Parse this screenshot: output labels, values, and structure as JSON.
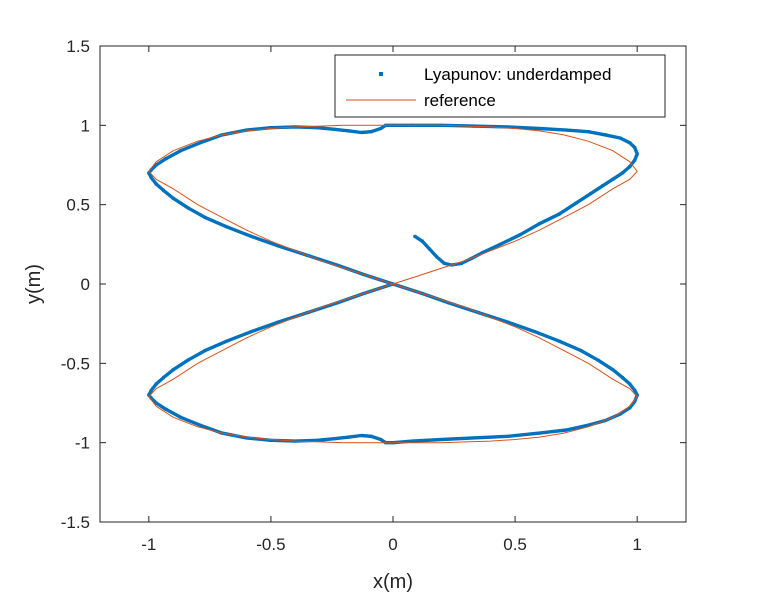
{
  "chart_data": {
    "type": "line",
    "title": "",
    "xlabel": "x(m)",
    "ylabel": "y(m)",
    "xlim": [
      -1.2,
      1.2
    ],
    "ylim": [
      -1.5,
      1.5
    ],
    "xticks": [
      -1,
      -0.5,
      0,
      0.5,
      1
    ],
    "xtick_labels": [
      "-1",
      "-0.5",
      "0",
      "0.5",
      "1"
    ],
    "yticks": [
      -1.5,
      -1,
      -0.5,
      0,
      0.5,
      1,
      1.5
    ],
    "ytick_labels": [
      "-1.5",
      "-1",
      "-0.5",
      "0",
      "0.5",
      "1",
      "1.5"
    ],
    "grid": false,
    "legend_position": "top-right",
    "series": [
      {
        "name": "Lyapunov: underdamped",
        "style": "dots",
        "color": "#0072BD",
        "x": [
          0.09,
          0.12,
          0.15,
          0.18,
          0.21,
          0.24,
          0.28,
          0.32,
          0.37,
          0.44,
          0.52,
          0.6,
          0.68,
          0.75,
          0.81,
          0.86,
          0.9,
          0.94,
          0.97,
          0.99,
          1.0,
          0.99,
          0.97,
          0.93,
          0.87,
          0.8,
          0.71,
          0.6,
          0.47,
          0.33,
          0.2,
          0.08,
          0.0,
          -0.03,
          -0.05,
          -0.09,
          -0.13,
          -0.18,
          -0.24,
          -0.31,
          -0.4,
          -0.5,
          -0.6,
          -0.7,
          -0.79,
          -0.87,
          -0.93,
          -0.97,
          -0.99,
          -1.0,
          -0.99,
          -0.97,
          -0.94,
          -0.9,
          -0.84,
          -0.77,
          -0.68,
          -0.58,
          -0.47,
          -0.35,
          -0.23,
          -0.12,
          0.0,
          0.12,
          0.23,
          0.35,
          0.47,
          0.58,
          0.68,
          0.77,
          0.84,
          0.9,
          0.94,
          0.97,
          0.99,
          1.0,
          0.99,
          0.97,
          0.93,
          0.87,
          0.8,
          0.71,
          0.6,
          0.47,
          0.33,
          0.2,
          0.08,
          0.0,
          -0.03,
          -0.05,
          -0.09,
          -0.13,
          -0.18,
          -0.24,
          -0.31,
          -0.4,
          -0.5,
          -0.6,
          -0.7,
          -0.79,
          -0.87,
          -0.93,
          -0.97,
          -0.99,
          -1.0,
          -0.99,
          -0.97,
          -0.94,
          -0.9,
          -0.84,
          -0.77,
          -0.68,
          -0.58,
          -0.47,
          -0.35,
          -0.23,
          -0.12,
          0.0
        ],
        "y": [
          0.3,
          0.27,
          0.22,
          0.17,
          0.13,
          0.12,
          0.13,
          0.16,
          0.2,
          0.25,
          0.31,
          0.38,
          0.44,
          0.51,
          0.57,
          0.62,
          0.66,
          0.7,
          0.74,
          0.78,
          0.82,
          0.86,
          0.89,
          0.92,
          0.94,
          0.96,
          0.97,
          0.98,
          0.99,
          0.995,
          1.0,
          1.0,
          1.0,
          1.0,
          0.98,
          0.96,
          0.955,
          0.965,
          0.975,
          0.985,
          0.99,
          0.985,
          0.97,
          0.94,
          0.89,
          0.84,
          0.79,
          0.75,
          0.72,
          0.7,
          0.67,
          0.63,
          0.59,
          0.54,
          0.48,
          0.42,
          0.36,
          0.3,
          0.24,
          0.18,
          0.12,
          0.06,
          0.0,
          -0.06,
          -0.12,
          -0.18,
          -0.24,
          -0.3,
          -0.36,
          -0.42,
          -0.48,
          -0.54,
          -0.59,
          -0.63,
          -0.67,
          -0.7,
          -0.74,
          -0.78,
          -0.82,
          -0.86,
          -0.89,
          -0.92,
          -0.94,
          -0.96,
          -0.97,
          -0.98,
          -0.99,
          -1.0,
          -1.0,
          -0.98,
          -0.96,
          -0.955,
          -0.965,
          -0.975,
          -0.985,
          -0.99,
          -0.985,
          -0.97,
          -0.94,
          -0.89,
          -0.84,
          -0.79,
          -0.75,
          -0.72,
          -0.7,
          -0.67,
          -0.63,
          -0.59,
          -0.54,
          -0.48,
          -0.42,
          -0.36,
          -0.3,
          -0.24,
          -0.18,
          -0.12,
          -0.06,
          0.0
        ]
      },
      {
        "name": "reference",
        "style": "line",
        "color": "#D95319",
        "x": [
          0.0,
          0.1,
          0.2,
          0.3,
          0.4,
          0.5,
          0.6,
          0.7,
          0.8,
          0.9,
          0.97,
          1.0,
          0.97,
          0.9,
          0.8,
          0.7,
          0.6,
          0.5,
          0.4,
          0.3,
          0.2,
          0.1,
          0.0,
          -0.1,
          -0.2,
          -0.3,
          -0.4,
          -0.5,
          -0.6,
          -0.7,
          -0.8,
          -0.9,
          -0.97,
          -1.0,
          -0.97,
          -0.9,
          -0.8,
          -0.7,
          -0.6,
          -0.5,
          -0.4,
          -0.3,
          -0.2,
          -0.1,
          0.0,
          0.1,
          0.2,
          0.3,
          0.4,
          0.5,
          0.6,
          0.7,
          0.8,
          0.9,
          0.97,
          1.0,
          0.97,
          0.9,
          0.8,
          0.7,
          0.6,
          0.5,
          0.4,
          0.3,
          0.2,
          0.1,
          0.0,
          -0.1,
          -0.2,
          -0.3,
          -0.4,
          -0.5,
          -0.6,
          -0.7,
          -0.8,
          -0.9,
          -0.97,
          -1.0,
          -0.97,
          -0.9,
          -0.8,
          -0.7,
          -0.6,
          -0.5,
          -0.4,
          -0.3,
          -0.2,
          -0.1,
          0.0
        ],
        "y": [
          0.0,
          0.05,
          0.1,
          0.15,
          0.21,
          0.27,
          0.34,
          0.42,
          0.5,
          0.6,
          0.66,
          0.71,
          0.77,
          0.84,
          0.9,
          0.94,
          0.965,
          0.98,
          0.99,
          0.995,
          1.0,
          1.0,
          1.0,
          1.0,
          1.0,
          0.995,
          0.99,
          0.98,
          0.965,
          0.94,
          0.9,
          0.84,
          0.77,
          0.71,
          0.66,
          0.6,
          0.5,
          0.42,
          0.34,
          0.27,
          0.21,
          0.15,
          0.1,
          0.05,
          0.0,
          -0.05,
          -0.1,
          -0.15,
          -0.21,
          -0.27,
          -0.34,
          -0.42,
          -0.5,
          -0.6,
          -0.66,
          -0.71,
          -0.77,
          -0.84,
          -0.9,
          -0.94,
          -0.965,
          -0.98,
          -0.99,
          -0.995,
          -1.0,
          -1.0,
          -1.0,
          -1.0,
          -1.0,
          -0.995,
          -0.99,
          -0.98,
          -0.965,
          -0.94,
          -0.9,
          -0.84,
          -0.77,
          -0.71,
          -0.66,
          -0.6,
          -0.5,
          -0.42,
          -0.34,
          -0.27,
          -0.21,
          -0.15,
          -0.1,
          -0.05,
          0.0
        ]
      }
    ]
  }
}
